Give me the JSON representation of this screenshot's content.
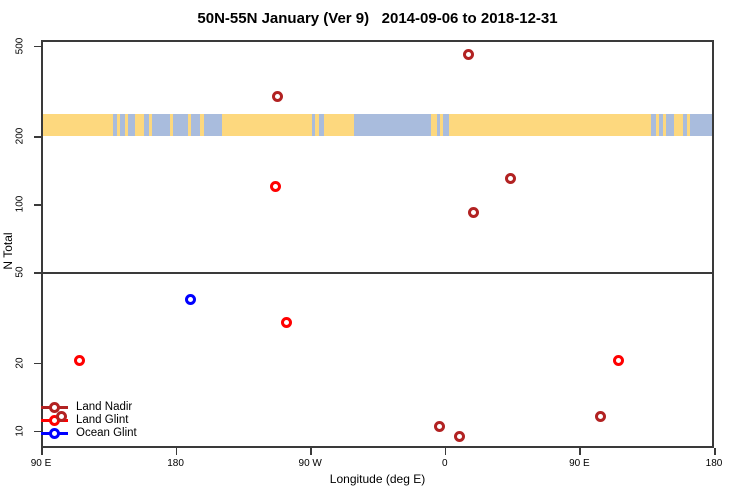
{
  "chart_data": {
    "type": "scatter",
    "title": "50N-55N January (Ver 9)   2014-09-06 to 2018-12-31",
    "xlabel": "Longitude (deg E)",
    "ylabel": "N Total",
    "grid": false,
    "legend_position": "bottom-left",
    "x_axis": {
      "range_axis_deg": [
        90,
        540
      ],
      "note": "longitude axis wraps: 90E eastward through 180, 90W, 0, back to 90E and 180; points with lon >= 90E drawn twice",
      "ticks": [
        {
          "axis_deg": 90,
          "label": "90 E"
        },
        {
          "axis_deg": 180,
          "label": "180"
        },
        {
          "axis_deg": 270,
          "label": "90 W"
        },
        {
          "axis_deg": 360,
          "label": "0"
        },
        {
          "axis_deg": 450,
          "label": "90 E"
        },
        {
          "axis_deg": 540,
          "label": "180"
        }
      ]
    },
    "y_axis": {
      "scale": "log",
      "range": [
        8.4,
        531
      ],
      "ticks": [
        10,
        20,
        50,
        100,
        200,
        500
      ]
    },
    "reference_line_y": 50,
    "map_band": {
      "description": "land/ocean strip for 50N-55N drawn between N=200 and N=250",
      "value_range": [
        200,
        250
      ],
      "ocean_color": "#A9BCDD",
      "land_color": "#FDD87E",
      "land_segments_axis_deg": [
        [
          90,
          138
        ],
        [
          141,
          143
        ],
        [
          146,
          148
        ],
        [
          153,
          159
        ],
        [
          162,
          164
        ],
        [
          176,
          178
        ],
        [
          188,
          190
        ],
        [
          196,
          199
        ],
        [
          211,
          271
        ],
        [
          273,
          276
        ],
        [
          279,
          299
        ],
        [
          351,
          355
        ],
        [
          357,
          359
        ],
        [
          363,
          498
        ],
        [
          501,
          503
        ],
        [
          506,
          508
        ],
        [
          513,
          519
        ],
        [
          522,
          524
        ]
      ]
    },
    "series": [
      {
        "name": "Land Nadir",
        "color": "#B22222",
        "points": [
          {
            "lon": 16,
            "n": 460
          },
          {
            "lon": -112,
            "n": 300
          },
          {
            "lon": 44,
            "n": 130
          },
          {
            "lon": 19,
            "n": 92
          },
          {
            "lon": 104,
            "n": 11.6
          },
          {
            "lon": -3.5,
            "n": 10.5
          },
          {
            "lon": 10,
            "n": 9.4
          }
        ]
      },
      {
        "name": "Land Glint",
        "color": "#FF0000",
        "points": [
          {
            "lon": -113.5,
            "n": 120
          },
          {
            "lon": -106,
            "n": 30
          },
          {
            "lon": 116,
            "n": 20.5
          }
        ]
      },
      {
        "name": "Ocean Glint",
        "color": "#0000FF",
        "points": [
          {
            "lon": -170,
            "n": 38
          }
        ]
      }
    ]
  }
}
